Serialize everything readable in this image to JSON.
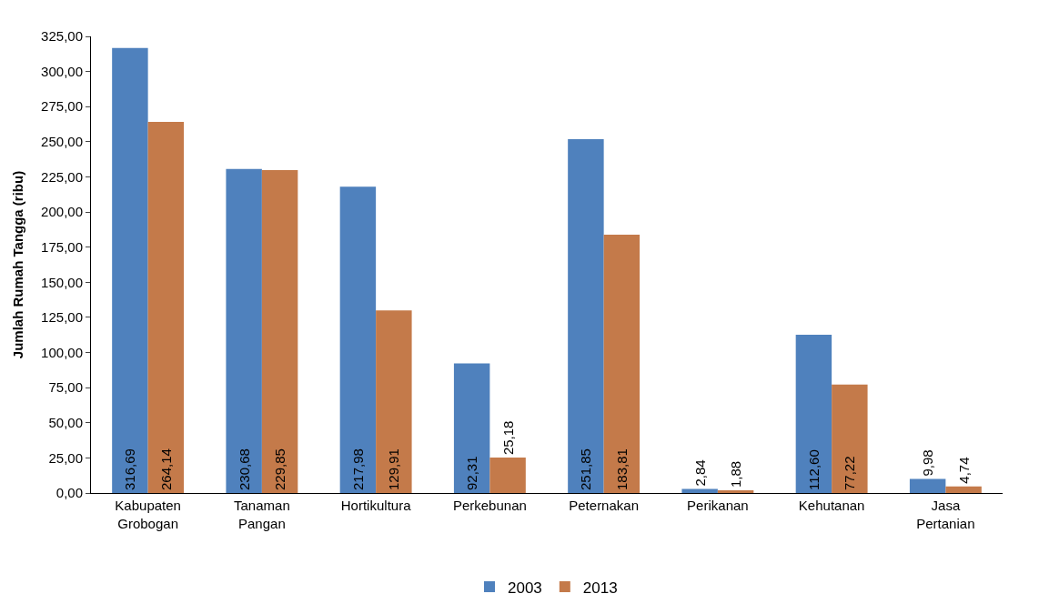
{
  "chart_data": {
    "type": "bar",
    "ylabel": "Jumlah Rumah Tangga (ribu)",
    "categories": [
      "Kabupaten Grobogan",
      "Tanaman Pangan",
      "Hortikultura",
      "Perkebunan",
      "Peternakan",
      "Perikanan",
      "Kehutanan",
      "Jasa Pertanian"
    ],
    "series": [
      {
        "name": "2003",
        "color": "#4f81bd",
        "values": [
          316.69,
          230.68,
          217.98,
          92.31,
          251.85,
          2.84,
          112.6,
          9.98
        ],
        "value_labels": [
          "316,69",
          "230,68",
          "217,98",
          "92,31",
          "251,85",
          "2,84",
          "112,60",
          "9,98"
        ]
      },
      {
        "name": "2013",
        "color": "#c47a4a",
        "values": [
          264.14,
          229.85,
          129.91,
          25.18,
          183.81,
          1.88,
          77.22,
          4.74
        ],
        "value_labels": [
          "264,14",
          "229,85",
          "129,91",
          "25,18",
          "183,81",
          "1,88",
          "77,22",
          "4,74"
        ]
      }
    ],
    "ylim": [
      0,
      325
    ],
    "yticks": [
      {
        "value": 0,
        "label": "0,00"
      },
      {
        "value": 25,
        "label": "25,00"
      },
      {
        "value": 50,
        "label": "50,00"
      },
      {
        "value": 75,
        "label": "75,00"
      },
      {
        "value": 100,
        "label": "100,00"
      },
      {
        "value": 125,
        "label": "125,00"
      },
      {
        "value": 150,
        "label": "150,00"
      },
      {
        "value": 175,
        "label": "175,00"
      },
      {
        "value": 200,
        "label": "200,00"
      },
      {
        "value": 225,
        "label": "225,00"
      },
      {
        "value": 250,
        "label": "250,00"
      },
      {
        "value": 275,
        "label": "275,00"
      },
      {
        "value": 300,
        "label": "300,00"
      },
      {
        "value": 325,
        "label": "325,00"
      }
    ],
    "legend": "bottom"
  }
}
